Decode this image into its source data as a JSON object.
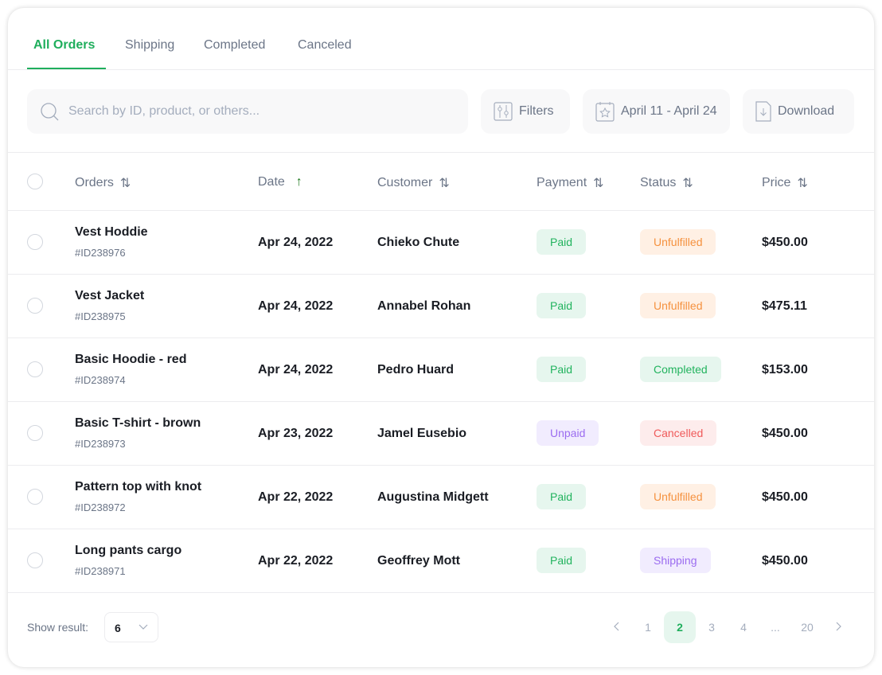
{
  "tabs": [
    {
      "label": "All Orders",
      "active": true
    },
    {
      "label": "Shipping"
    },
    {
      "label": "Completed"
    },
    {
      "label": "Canceled"
    }
  ],
  "toolbar": {
    "search_placeholder": "Search by ID, product, or others...",
    "filters": "Filters",
    "date_range": "April 11 - April 24",
    "download": "Download"
  },
  "columns": {
    "orders": "Orders",
    "date": "Date",
    "customer": "Customer",
    "payment": "Payment",
    "status": "Status",
    "price": "Price"
  },
  "rows": [
    {
      "product": "Vest Hoddie",
      "id": "#ID238976",
      "date": "Apr 24, 2022",
      "customer": "Chieko Chute",
      "payment": "Paid",
      "status": "Unfulfilled",
      "price": "$450.00"
    },
    {
      "product": "Vest Jacket",
      "id": "#ID238975",
      "date": "Apr 24, 2022",
      "customer": "Annabel Rohan",
      "payment": "Paid",
      "status": "Unfulfilled",
      "price": "$475.11"
    },
    {
      "product": "Basic Hoodie - red",
      "id": "#ID238974",
      "date": "Apr 24, 2022",
      "customer": "Pedro Huard",
      "payment": "Paid",
      "status": "Completed",
      "price": "$153.00"
    },
    {
      "product": "Basic T-shirt - brown",
      "id": "#ID238973",
      "date": "Apr 23, 2022",
      "customer": "Jamel Eusebio",
      "payment": "Unpaid",
      "status": "Cancelled",
      "price": "$450.00"
    },
    {
      "product": "Pattern top with knot",
      "id": "#ID238972",
      "date": "Apr 22, 2022",
      "customer": "Augustina Midgett",
      "payment": "Paid",
      "status": "Unfulfilled",
      "price": "$450.00"
    },
    {
      "product": "Long pants cargo",
      "id": "#ID238971",
      "date": "Apr 22, 2022",
      "customer": "Geoffrey Mott",
      "payment": "Paid",
      "status": "Shipping",
      "price": "$450.00"
    }
  ],
  "badge_colors": {
    "Paid": [
      "#e6f6ee",
      "#22b35e"
    ],
    "Completed": [
      "#e6f6ee",
      "#22b35e"
    ],
    "Unfulfilled": [
      "#fff0e4",
      "#f5913e"
    ],
    "Unpaid": [
      "#f1ecfe",
      "#9b6cf0"
    ],
    "Shipping": [
      "#f1ecfe",
      "#9b6cf0"
    ],
    "Cancelled": [
      "#fdecec",
      "#ef5a5a"
    ]
  },
  "accent": "#1fae5c",
  "footer": {
    "show_result_label": "Show result:",
    "show_result_value": "6",
    "pages": [
      "1",
      "2",
      "3",
      "4",
      "...",
      "20"
    ],
    "current_page": "2"
  }
}
